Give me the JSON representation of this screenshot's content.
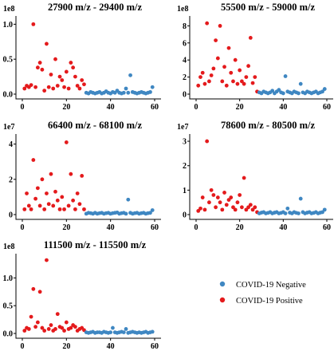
{
  "colors": {
    "negative": "#3f87c2",
    "positive": "#e41a1c"
  },
  "legend": {
    "negative_label": "COVID-19 Negative",
    "positive_label": "COVID-19 Positive"
  },
  "chart_data": [
    {
      "type": "scatter",
      "title": "27900 m/z - 29400 m/z",
      "scale_label": "1e8",
      "xlim": [
        0,
        60
      ],
      "ylim": [
        0,
        1.05
      ],
      "xticks": [
        "0",
        "20",
        "40",
        "60"
      ],
      "yticks": [
        "0.0",
        "0.5",
        "1.0"
      ],
      "series": [
        {
          "name": "COVID-19 Positive",
          "x": [
            1,
            2,
            3,
            4,
            5,
            6,
            7,
            8,
            9,
            10,
            11,
            12,
            13,
            14,
            15,
            16,
            17,
            18,
            19,
            20,
            21,
            22,
            23,
            24,
            25,
            26,
            27,
            28
          ],
          "y": [
            0.08,
            0.12,
            0.1,
            0.13,
            1.0,
            0.1,
            0.38,
            0.45,
            0.35,
            0.05,
            0.72,
            0.1,
            0.28,
            0.08,
            0.5,
            0.12,
            0.25,
            0.2,
            0.1,
            0.32,
            0.08,
            0.45,
            0.38,
            0.25,
            0.12,
            0.08,
            0.2,
            0.14
          ]
        },
        {
          "name": "COVID-19 Negative",
          "x": [
            29,
            30,
            31,
            32,
            33,
            34,
            35,
            36,
            37,
            38,
            39,
            40,
            41,
            42,
            43,
            44,
            45,
            46,
            47,
            48,
            49,
            50,
            51,
            52,
            53,
            54,
            55,
            56,
            57,
            58,
            59
          ],
          "y": [
            0.02,
            0.01,
            0.03,
            0.02,
            0.01,
            0.02,
            0.03,
            0.01,
            0.02,
            0.04,
            0.02,
            0.01,
            0.03,
            0.02,
            0.05,
            0.02,
            0.01,
            0.02,
            0.08,
            0.02,
            0.27,
            0.03,
            0.02,
            0.01,
            0.02,
            0.03,
            0.02,
            0.01,
            0.02,
            0.03,
            0.1
          ]
        }
      ]
    },
    {
      "type": "scatter",
      "title": "55500 m/z - 59000 m/z",
      "scale_label": "1e8",
      "xlim": [
        0,
        60
      ],
      "ylim": [
        0,
        8.6
      ],
      "xticks": [
        "0",
        "20",
        "40",
        "60"
      ],
      "yticks": [
        "0",
        "2",
        "4",
        "6",
        "8"
      ],
      "series": [
        {
          "name": "COVID-19 Positive",
          "x": [
            1,
            2,
            3,
            4,
            5,
            6,
            7,
            8,
            9,
            10,
            11,
            12,
            13,
            14,
            15,
            16,
            17,
            18,
            19,
            20,
            21,
            22,
            23,
            24,
            25,
            26,
            27,
            28
          ],
          "y": [
            1.0,
            2.0,
            2.5,
            1.2,
            8.3,
            1.5,
            2.2,
            3.0,
            6.3,
            4.2,
            8.0,
            1.5,
            3.2,
            1.0,
            5.4,
            2.5,
            1.5,
            4.0,
            1.2,
            2.8,
            1.5,
            1.2,
            2.0,
            3.3,
            6.6,
            1.3,
            2.0,
            0.3
          ]
        },
        {
          "name": "COVID-19 Negative",
          "x": [
            29,
            30,
            31,
            32,
            33,
            34,
            35,
            36,
            37,
            38,
            39,
            40,
            41,
            42,
            43,
            44,
            45,
            46,
            47,
            48,
            49,
            50,
            51,
            52,
            53,
            54,
            55,
            56,
            57,
            58,
            59
          ],
          "y": [
            0.2,
            0.1,
            0.3,
            0.2,
            0.1,
            0.2,
            0.4,
            0.1,
            0.3,
            0.5,
            0.2,
            0.1,
            2.1,
            0.3,
            0.2,
            0.1,
            0.3,
            0.2,
            0.1,
            1.2,
            0.2,
            0.1,
            0.3,
            0.2,
            0.1,
            0.2,
            0.3,
            0.1,
            0.2,
            0.3,
            0.6
          ]
        }
      ]
    },
    {
      "type": "scatter",
      "title": "66400 m/z - 68100 m/z",
      "scale_label": "1e7",
      "xlim": [
        0,
        60
      ],
      "ylim": [
        0,
        4.3
      ],
      "xticks": [
        "0",
        "20",
        "40",
        "60"
      ],
      "yticks": [
        "0",
        "2",
        "4"
      ],
      "series": [
        {
          "name": "COVID-19 Positive",
          "x": [
            1,
            2,
            3,
            4,
            5,
            6,
            7,
            8,
            9,
            10,
            11,
            12,
            13,
            14,
            15,
            16,
            17,
            18,
            19,
            20,
            21,
            22,
            23,
            24,
            25,
            26,
            27,
            28
          ],
          "y": [
            0.3,
            1.2,
            0.5,
            0.3,
            3.1,
            0.9,
            1.5,
            0.5,
            2.0,
            0.3,
            1.2,
            0.6,
            2.3,
            0.5,
            1.3,
            0.8,
            0.3,
            1.0,
            0.3,
            4.1,
            0.5,
            2.3,
            0.8,
            0.3,
            1.2,
            0.6,
            2.2,
            0.3
          ]
        },
        {
          "name": "COVID-19 Negative",
          "x": [
            29,
            30,
            31,
            32,
            33,
            34,
            35,
            36,
            37,
            38,
            39,
            40,
            41,
            42,
            43,
            44,
            45,
            46,
            47,
            48,
            49,
            50,
            51,
            52,
            53,
            54,
            55,
            56,
            57,
            58,
            59
          ],
          "y": [
            0.05,
            0.1,
            0.08,
            0.05,
            0.1,
            0.05,
            0.08,
            0.1,
            0.05,
            0.08,
            0.1,
            0.05,
            0.08,
            0.1,
            0.12,
            0.05,
            0.08,
            0.1,
            0.05,
            0.85,
            0.1,
            0.05,
            0.08,
            0.1,
            0.05,
            0.08,
            0.1,
            0.05,
            0.08,
            0.1,
            0.25
          ]
        }
      ]
    },
    {
      "type": "scatter",
      "title": "78600 m/z - 80500 m/z",
      "scale_label": "1e7",
      "xlim": [
        0,
        60
      ],
      "ylim": [
        0,
        3.1
      ],
      "xticks": [
        "0",
        "20",
        "40",
        "60"
      ],
      "yticks": [
        "0",
        "1",
        "2",
        "3"
      ],
      "series": [
        {
          "name": "COVID-19 Positive",
          "x": [
            1,
            2,
            3,
            4,
            5,
            6,
            7,
            8,
            9,
            10,
            11,
            12,
            13,
            14,
            15,
            16,
            17,
            18,
            19,
            20,
            21,
            22,
            23,
            24,
            25,
            26,
            27,
            28
          ],
          "y": [
            0.15,
            0.25,
            0.7,
            0.2,
            3.0,
            0.5,
            1.0,
            0.8,
            0.3,
            0.7,
            0.5,
            0.2,
            0.9,
            0.4,
            0.6,
            0.7,
            0.3,
            0.2,
            0.5,
            0.8,
            0.3,
            1.5,
            0.2,
            0.3,
            0.4,
            0.2,
            0.3,
            0.1
          ]
        },
        {
          "name": "COVID-19 Negative",
          "x": [
            29,
            30,
            31,
            32,
            33,
            34,
            35,
            36,
            37,
            38,
            39,
            40,
            41,
            42,
            43,
            44,
            45,
            46,
            47,
            48,
            49,
            50,
            51,
            52,
            53,
            54,
            55,
            56,
            57,
            58,
            59
          ],
          "y": [
            0.05,
            0.08,
            0.1,
            0.05,
            0.07,
            0.1,
            0.05,
            0.08,
            0.1,
            0.05,
            0.07,
            0.1,
            0.05,
            0.25,
            0.08,
            0.05,
            0.1,
            0.07,
            0.05,
            0.65,
            0.1,
            0.05,
            0.08,
            0.1,
            0.05,
            0.07,
            0.1,
            0.05,
            0.08,
            0.1,
            0.2
          ]
        }
      ]
    },
    {
      "type": "scatter",
      "title": "111500 m/z - 115500 m/z",
      "scale_label": "1e8",
      "xlim": [
        0,
        60
      ],
      "ylim": [
        0,
        1.35
      ],
      "xticks": [
        "0",
        "20",
        "40",
        "60"
      ],
      "yticks": [
        "0.0",
        "0.5",
        "1.0"
      ],
      "series": [
        {
          "name": "COVID-19 Positive",
          "x": [
            1,
            2,
            3,
            4,
            5,
            6,
            7,
            8,
            9,
            10,
            11,
            12,
            13,
            14,
            15,
            16,
            17,
            18,
            19,
            20,
            21,
            22,
            23,
            24,
            25,
            26,
            27,
            28
          ],
          "y": [
            0.05,
            0.1,
            0.08,
            0.3,
            0.8,
            0.12,
            0.2,
            0.75,
            0.1,
            0.05,
            1.32,
            0.08,
            0.15,
            0.05,
            0.08,
            0.35,
            0.12,
            0.1,
            0.05,
            0.2,
            0.08,
            0.1,
            0.15,
            0.12,
            0.05,
            0.08,
            0.1,
            0.06
          ]
        },
        {
          "name": "COVID-19 Negative",
          "x": [
            29,
            30,
            31,
            32,
            33,
            34,
            35,
            36,
            37,
            38,
            39,
            40,
            41,
            42,
            43,
            44,
            45,
            46,
            47,
            48,
            49,
            50,
            51,
            52,
            53,
            54,
            55,
            56,
            57,
            58,
            59
          ],
          "y": [
            0.02,
            0.01,
            0.02,
            0.03,
            0.01,
            0.02,
            0.02,
            0.01,
            0.03,
            0.02,
            0.01,
            0.02,
            0.1,
            0.02,
            0.01,
            0.02,
            0.03,
            0.02,
            0.08,
            0.01,
            0.02,
            0.03,
            0.02,
            0.01,
            0.02,
            0.01,
            0.02,
            0.03,
            0.01,
            0.02,
            0.03
          ]
        }
      ]
    }
  ]
}
